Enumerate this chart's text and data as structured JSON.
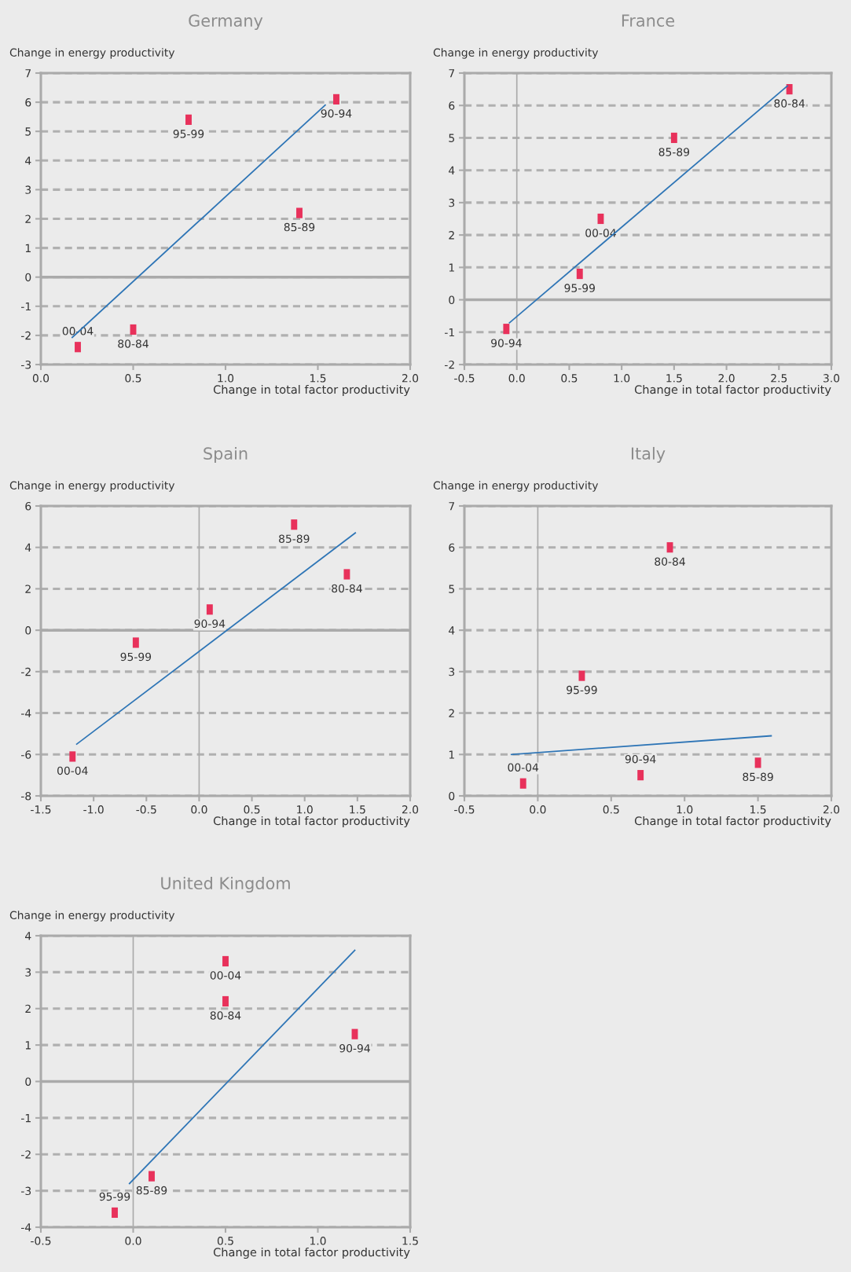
{
  "chart_data": [
    {
      "type": "scatter",
      "title": "Germany",
      "ylabel": "Change in energy productivity",
      "xlabel": "Change in total factor productivity",
      "xlim": [
        0,
        2
      ],
      "xticks": [
        {
          "value": 0,
          "label": "0.0"
        },
        0.5,
        {
          "value": 1,
          "label": "1.0"
        },
        1.5,
        {
          "value": 2,
          "label": "2.0"
        }
      ],
      "ylim": [
        -3,
        7
      ],
      "yticks": [
        -3,
        -2,
        -1,
        0,
        1,
        2,
        3,
        4,
        5,
        6,
        7
      ],
      "grid": "y",
      "series": [
        {
          "type": "scatter",
          "marker": "square",
          "color": "#e8315b",
          "x": [
            1.6,
            0.8,
            1.4,
            0.5,
            0.2
          ],
          "values": [
            6.1,
            5.4,
            2.2,
            -1.8,
            -2.4
          ]
        },
        {
          "type": "line",
          "color": "#2e75b6",
          "x": [
            0.17,
            1.54
          ],
          "values": [
            -2.07,
            5.9
          ]
        }
      ],
      "annotations": [
        {
          "text": "90-94",
          "x": 1.6,
          "y": 6.1
        },
        {
          "text": "95-99",
          "x": 0.8,
          "y": 5.4
        },
        {
          "text": "85-89",
          "x": 1.4,
          "y": 2.2
        },
        {
          "text": "80-84",
          "x": 0.5,
          "y": -1.8
        },
        {
          "text": "00-04",
          "x": 0.2,
          "y": -2.4
        }
      ],
      "ref_lines": [
        {
          "axis": "y",
          "value": 0
        }
      ]
    },
    {
      "type": "scatter",
      "title": "France",
      "ylabel": "Change in energy productivity",
      "xlabel": "Change in total factor productivity",
      "xlim": [
        -0.5,
        3
      ],
      "xticks": [
        -0.5,
        {
          "value": 0,
          "label": "0.0"
        },
        0.5,
        {
          "value": 1,
          "label": "1.0"
        },
        1.5,
        {
          "value": 2,
          "label": "2.0"
        },
        2.5,
        {
          "value": 3,
          "label": "3.0"
        }
      ],
      "ylim": [
        -2,
        7
      ],
      "yticks": [
        -2,
        -1,
        0,
        1,
        2,
        3,
        4,
        5,
        6,
        7
      ],
      "grid": "y",
      "series": [
        {
          "type": "scatter",
          "marker": "square",
          "color": "#e8315b",
          "x": [
            2.6,
            1.5,
            0.8,
            0.6,
            -0.1
          ],
          "values": [
            6.5,
            5.0,
            2.5,
            0.8,
            -0.9
          ]
        },
        {
          "type": "line",
          "color": "#2e75b6",
          "x": [
            -0.07,
            2.58
          ],
          "values": [
            -0.71,
            6.6
          ]
        }
      ],
      "annotations": [
        {
          "text": "80-84",
          "x": 2.6,
          "y": 6.5
        },
        {
          "text": "85-89",
          "x": 1.5,
          "y": 5.0
        },
        {
          "text": "00-04",
          "x": 0.8,
          "y": 2.5
        },
        {
          "text": "95-99",
          "x": 0.6,
          "y": 0.8
        },
        {
          "text": "90-94",
          "x": -0.1,
          "y": -0.9
        }
      ],
      "ref_lines": [
        {
          "axis": "y",
          "value": 0
        },
        {
          "axis": "x",
          "value": 0
        }
      ]
    },
    {
      "type": "scatter",
      "title": "Spain",
      "ylabel": "Change in energy productivity",
      "xlabel": "Change in total factor productivity",
      "xlim": [
        -1.5,
        2
      ],
      "xticks": [
        -1.5,
        {
          "value": -1,
          "label": "-1.0"
        },
        -0.5,
        {
          "value": 0,
          "label": "0.0"
        },
        0.5,
        {
          "value": 1,
          "label": "1.0"
        },
        1.5,
        {
          "value": 2,
          "label": "2.0"
        }
      ],
      "ylim": [
        -8,
        6
      ],
      "yticks": [
        -8,
        -6,
        -4,
        -2,
        0,
        2,
        4,
        6
      ],
      "grid": "y",
      "series": [
        {
          "type": "scatter",
          "marker": "square",
          "color": "#e8315b",
          "x": [
            0.9,
            1.4,
            0.1,
            -0.6,
            -1.2
          ],
          "values": [
            5.1,
            2.7,
            1.0,
            -0.6,
            -6.1
          ]
        },
        {
          "type": "line",
          "color": "#2e75b6",
          "x": [
            -1.16,
            1.48
          ],
          "values": [
            -5.5,
            4.7
          ]
        }
      ],
      "annotations": [
        {
          "text": "85-89",
          "x": 0.9,
          "y": 5.1
        },
        {
          "text": "80-84",
          "x": 1.4,
          "y": 2.7
        },
        {
          "text": "90-94",
          "x": 0.1,
          "y": 1.0
        },
        {
          "text": "95-99",
          "x": -0.6,
          "y": -0.6
        },
        {
          "text": "00-04",
          "x": -1.2,
          "y": -6.1
        }
      ],
      "ref_lines": [
        {
          "axis": "y",
          "value": 0
        },
        {
          "axis": "x",
          "value": 0
        }
      ]
    },
    {
      "type": "scatter",
      "title": "Italy",
      "ylabel": "Change in energy productivity",
      "xlabel": "Change in total factor productivity",
      "xlim": [
        -0.5,
        2
      ],
      "xticks": [
        -0.5,
        {
          "value": 0,
          "label": "0.0"
        },
        0.5,
        {
          "value": 1,
          "label": "1.0"
        },
        1.5,
        {
          "value": 2,
          "label": "2.0"
        }
      ],
      "ylim": [
        0,
        7
      ],
      "yticks": [
        0,
        1,
        2,
        3,
        4,
        5,
        6,
        7
      ],
      "grid": "y",
      "series": [
        {
          "type": "scatter",
          "marker": "square",
          "color": "#e8315b",
          "x": [
            0.9,
            0.3,
            -0.1,
            0.7,
            1.5
          ],
          "values": [
            6.0,
            2.9,
            0.3,
            0.5,
            0.8
          ]
        },
        {
          "type": "line",
          "color": "#2e75b6",
          "x": [
            -0.18,
            1.59
          ],
          "values": [
            1.0,
            1.45
          ]
        }
      ],
      "annotations": [
        {
          "text": "80-84",
          "x": 0.9,
          "y": 6.0
        },
        {
          "text": "95-99",
          "x": 0.3,
          "y": 2.9
        },
        {
          "text": "00-04",
          "x": -0.1,
          "y": 0.3
        },
        {
          "text": "90-94",
          "x": 0.7,
          "y": 0.5
        },
        {
          "text": "85-89",
          "x": 1.5,
          "y": 0.8
        }
      ],
      "ref_lines": [
        {
          "axis": "x",
          "value": 0
        }
      ]
    },
    {
      "type": "scatter",
      "title": "United Kingdom",
      "ylabel": "Change in energy productivity",
      "xlabel": "Change in total factor productivity",
      "xlim": [
        -0.5,
        1.5
      ],
      "xticks": [
        -0.5,
        {
          "value": 0,
          "label": "0.0"
        },
        0.5,
        {
          "value": 1,
          "label": "1.0"
        },
        1.5
      ],
      "ylim": [
        -4,
        4
      ],
      "yticks": [
        -4,
        -3,
        -2,
        -1,
        0,
        1,
        2,
        3,
        4
      ],
      "grid": "y",
      "series": [
        {
          "type": "scatter",
          "marker": "square",
          "color": "#e8315b",
          "x": [
            0.5,
            0.5,
            1.2,
            0.1,
            -0.1
          ],
          "values": [
            3.3,
            2.2,
            1.3,
            -2.6,
            -3.6
          ]
        },
        {
          "type": "line",
          "color": "#2e75b6",
          "x": [
            -0.02,
            1.2
          ],
          "values": [
            -2.8,
            3.6
          ]
        }
      ],
      "annotations": [
        {
          "text": "00-04",
          "x": 0.5,
          "y": 3.3
        },
        {
          "text": "80-84",
          "x": 0.5,
          "y": 2.2
        },
        {
          "text": "90-94",
          "x": 1.2,
          "y": 1.3
        },
        {
          "text": "85-89",
          "x": 0.1,
          "y": -2.6
        },
        {
          "text": "95-99",
          "x": -0.1,
          "y": -3.6
        }
      ],
      "ref_lines": [
        {
          "axis": "y",
          "value": 0
        },
        {
          "axis": "x",
          "value": 0
        }
      ]
    }
  ]
}
